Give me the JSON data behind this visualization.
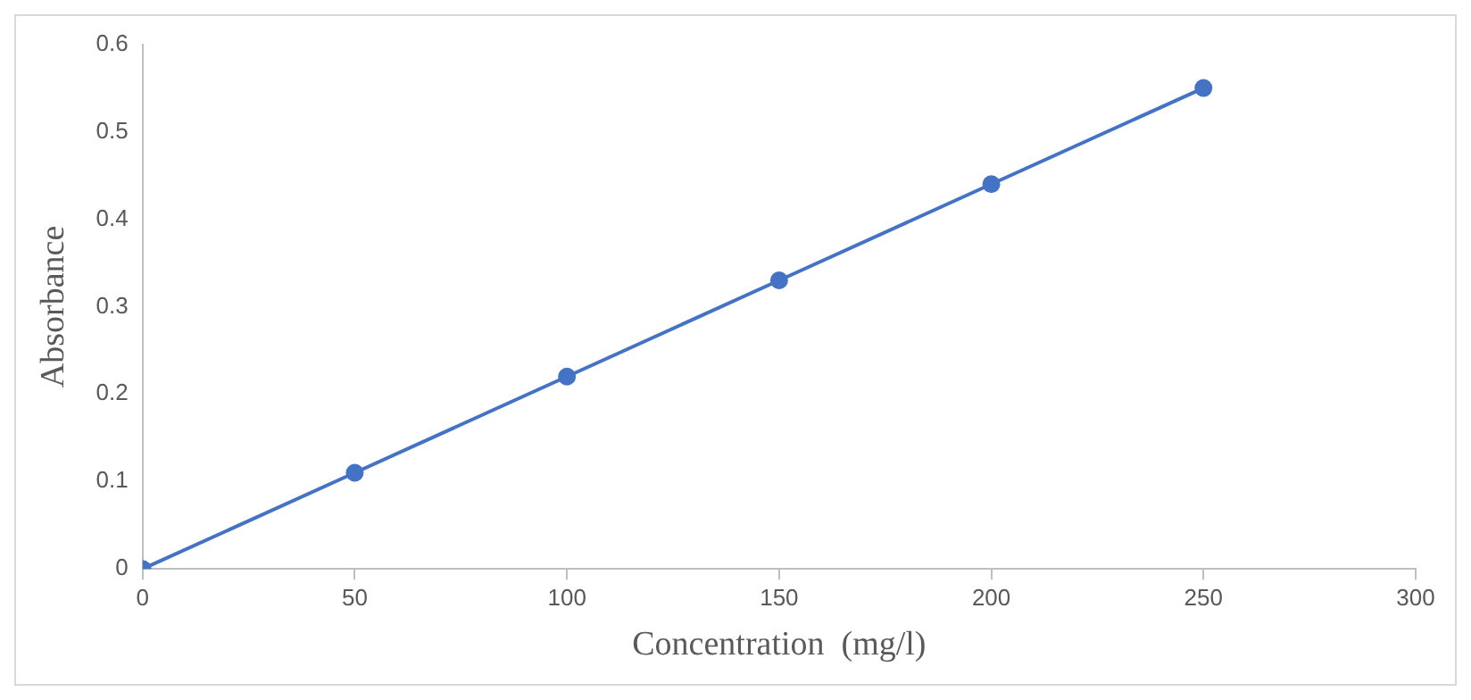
{
  "chart_data": {
    "type": "line",
    "xlabel": "Concentration  (mg/l)",
    "ylabel": "Absorbance",
    "x": [
      0,
      50,
      100,
      150,
      200,
      250
    ],
    "series": [
      {
        "color": "#4472c4",
        "values": [
          0,
          0.11,
          0.22,
          0.33,
          0.44,
          0.55
        ]
      }
    ],
    "xlim": [
      0,
      300
    ],
    "xticks": [
      0,
      50,
      100,
      150,
      200,
      250,
      300
    ],
    "ylim": [
      0,
      0.6
    ],
    "yticks": [
      0,
      0.1,
      0.2,
      0.3,
      0.4,
      0.5,
      0.6
    ],
    "marker": "circle",
    "line_style": "solid"
  }
}
